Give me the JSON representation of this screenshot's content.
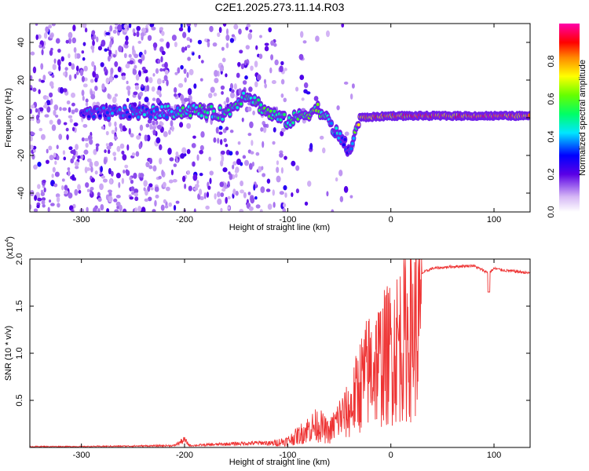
{
  "figure_title": "C2E1.2025.273.11.14.R03",
  "chart_data": [
    {
      "type": "heatmap",
      "title": "C2E1.2025.273.11.14.R03",
      "xlabel": "Height of straight line (km)",
      "ylabel": "Frequency (Hz)",
      "xlim": [
        -350,
        135
      ],
      "ylim": [
        -50,
        50
      ],
      "x_ticks": [
        -300,
        -200,
        -100,
        0,
        100
      ],
      "y_ticks": [
        -40,
        -20,
        0,
        20,
        40
      ],
      "colorbar": {
        "label": "Normalized spectral amplitude",
        "range": [
          0,
          1
        ],
        "ticks": [
          0.0,
          0.2,
          0.4,
          0.6,
          0.8
        ],
        "tick_labels": [
          "0.0",
          "0.2",
          "0.4",
          "0.6",
          "0.8"
        ],
        "colormap": "white-violet-blue-cyan-green-yellow-red-magenta"
      },
      "ridge": {
        "description_points": [
          {
            "x": -290,
            "f": 2,
            "amp": 0.35
          },
          {
            "x": -250,
            "f": 3,
            "amp": 0.4
          },
          {
            "x": -220,
            "f": 3,
            "amp": 0.45
          },
          {
            "x": -190,
            "f": 4,
            "amp": 0.55
          },
          {
            "x": -160,
            "f": 2,
            "amp": 0.5
          },
          {
            "x": -140,
            "f": 13,
            "amp": 0.5
          },
          {
            "x": -120,
            "f": 3,
            "amp": 0.55
          },
          {
            "x": -100,
            "f": -2,
            "amp": 0.5
          },
          {
            "x": -70,
            "f": 5,
            "amp": 0.6
          },
          {
            "x": -50,
            "f": -10,
            "amp": 0.4
          },
          {
            "x": -40,
            "f": -18,
            "amp": 0.3
          },
          {
            "x": -30,
            "f": 0,
            "amp": 0.8
          },
          {
            "x": 0,
            "f": 1,
            "amp": 0.85
          },
          {
            "x": 50,
            "f": 1,
            "amp": 0.9
          },
          {
            "x": 100,
            "f": 1,
            "amp": 0.9
          },
          {
            "x": 135,
            "f": 1,
            "amp": 0.9
          }
        ]
      }
    },
    {
      "type": "line",
      "xlabel": "Height of straight line (km)",
      "ylabel": "SNR (10 * v/v)",
      "y_multiplier_label": "(x10",
      "y_multiplier_exponent": "4",
      "y_multiplier_close": ")",
      "xlim": [
        -350,
        135
      ],
      "ylim": [
        0,
        2.0
      ],
      "x_ticks": [
        -300,
        -200,
        -100,
        0,
        100
      ],
      "y_ticks": [
        0.5,
        1.0,
        1.5,
        2.0
      ],
      "y_tick_labels": [
        "0.5",
        "1.0",
        "1.5",
        "2.0"
      ],
      "color": "#ee3333",
      "series": [
        {
          "x": [
            -350,
            -300,
            -250,
            -210,
            -200,
            -195,
            -150,
            -120,
            -100,
            -90,
            -80,
            -70,
            -60,
            -50,
            -40,
            -30,
            -20,
            -10,
            0,
            10,
            20,
            30,
            40,
            60,
            80,
            95,
            100,
            110,
            120,
            135
          ],
          "y": [
            0.01,
            0.01,
            0.015,
            0.02,
            0.08,
            0.02,
            0.04,
            0.05,
            0.1,
            0.18,
            0.28,
            0.35,
            0.22,
            0.45,
            0.55,
            0.95,
            1.2,
            1.3,
            1.45,
            1.62,
            1.75,
            1.85,
            1.9,
            1.92,
            1.93,
            1.85,
            1.9,
            1.88,
            1.87,
            1.85
          ]
        }
      ]
    }
  ]
}
